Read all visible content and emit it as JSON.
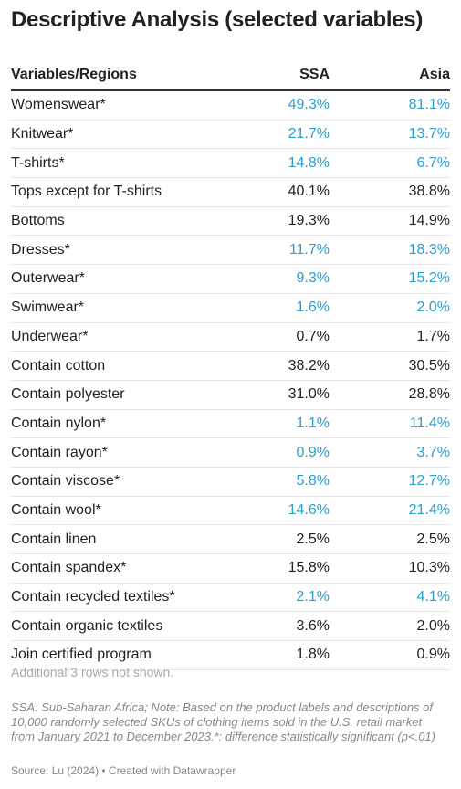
{
  "title": "Descriptive Analysis (selected variables)",
  "table": {
    "header": [
      "Variables/Regions",
      "SSA",
      "Asia"
    ],
    "rows": [
      {
        "cells": [
          "Womenswear*",
          "49.3%",
          "81.1%"
        ],
        "color": "#2a9fd0"
      },
      {
        "cells": [
          "Knitwear*",
          "21.7%",
          "13.7%"
        ],
        "color": "#2a9fd0"
      },
      {
        "cells": [
          "T-shirts*",
          "14.8%",
          "6.7%"
        ],
        "color": "#2a9fd0"
      },
      {
        "cells": [
          "Tops except for T-shirts",
          "40.1%",
          "38.8%"
        ],
        "color": "#222222"
      },
      {
        "cells": [
          "Bottoms",
          "19.3%",
          "14.9%"
        ],
        "color": "#222222"
      },
      {
        "cells": [
          "Dresses*",
          "11.7%",
          "18.3%"
        ],
        "color": "#2a9fd0"
      },
      {
        "cells": [
          "Outerwear*",
          "9.3%",
          "15.2%"
        ],
        "color": "#2a9fd0"
      },
      {
        "cells": [
          "Swimwear*",
          "1.6%",
          "2.0%"
        ],
        "color": "#2a9fd0"
      },
      {
        "cells": [
          "Underwear*",
          "0.7%",
          "1.7%"
        ],
        "color": "#222222"
      },
      {
        "cells": [
          "Contain cotton",
          "38.2%",
          "30.5%"
        ],
        "color": "#222222"
      },
      {
        "cells": [
          "Contain polyester",
          "31.0%",
          "28.8%"
        ],
        "color": "#222222"
      },
      {
        "cells": [
          "Contain nylon*",
          "1.1%",
          "11.4%"
        ],
        "color": "#2a9fd0"
      },
      {
        "cells": [
          "Contain rayon*",
          "0.9%",
          "3.7%"
        ],
        "color": "#2a9fd0"
      },
      {
        "cells": [
          "Contain viscose*",
          "5.8%",
          "12.7%"
        ],
        "color": "#2a9fd0"
      },
      {
        "cells": [
          "Contain wool*",
          "14.6%",
          "21.4%"
        ],
        "color": "#2a9fd0"
      },
      {
        "cells": [
          "Contain linen",
          "2.5%",
          "2.5%"
        ],
        "color": "#222222"
      },
      {
        "cells": [
          "Contain spandex*",
          "15.8%",
          "10.3%"
        ],
        "color": "#222222"
      },
      {
        "cells": [
          "Contain recycled textiles*",
          "2.1%",
          "4.1%"
        ],
        "color": "#2a9fd0"
      },
      {
        "cells": [
          "Contain organic textiles",
          "3.6%",
          "2.0%"
        ],
        "color": "#222222"
      },
      {
        "cells": [
          "Join certified program",
          "1.8%",
          "0.9%"
        ],
        "color": "#222222"
      }
    ]
  },
  "more_rows": "Additional 3 rows not shown.",
  "notes": "SSA: Sub-Saharan Africa; Note: Based on the product labels and descriptions of 10,000 randomly selected SKUs of clothing items sold in the U.S. retail market from January 2021 to December 2023.*: difference statistically significant (p<.01)",
  "source": "Source: Lu (2024) • Created with Datawrapper"
}
